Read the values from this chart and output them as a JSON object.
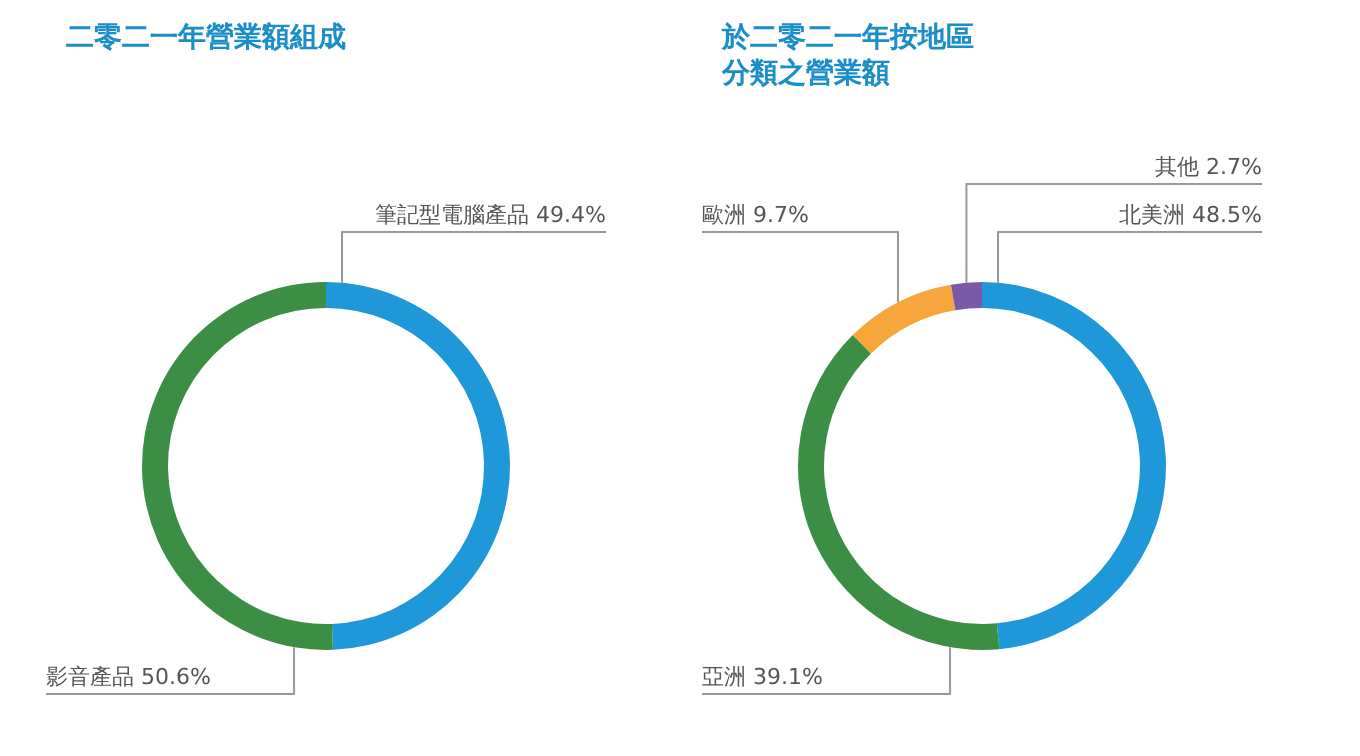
{
  "chart_data": [
    {
      "type": "donut",
      "title": "二零二一年營業額組成",
      "categories": [
        "筆記型電腦產品",
        "影音產品"
      ],
      "values": [
        49.4,
        50.6
      ],
      "colors": [
        "#1e98d8",
        "#3b8e44"
      ],
      "value_labels": [
        "49.4%",
        "50.6%"
      ]
    },
    {
      "type": "donut",
      "title": "於二零二一年按地區分類之營業額",
      "categories": [
        "北美洲",
        "亞洲",
        "歐洲",
        "其他"
      ],
      "values": [
        48.5,
        39.1,
        9.7,
        2.7
      ],
      "colors": [
        "#1e98d8",
        "#3b8e44",
        "#f6a63b",
        "#7a5aa6"
      ],
      "value_labels": [
        "48.5%",
        "39.1%",
        "9.7%",
        "2.7%"
      ]
    }
  ]
}
